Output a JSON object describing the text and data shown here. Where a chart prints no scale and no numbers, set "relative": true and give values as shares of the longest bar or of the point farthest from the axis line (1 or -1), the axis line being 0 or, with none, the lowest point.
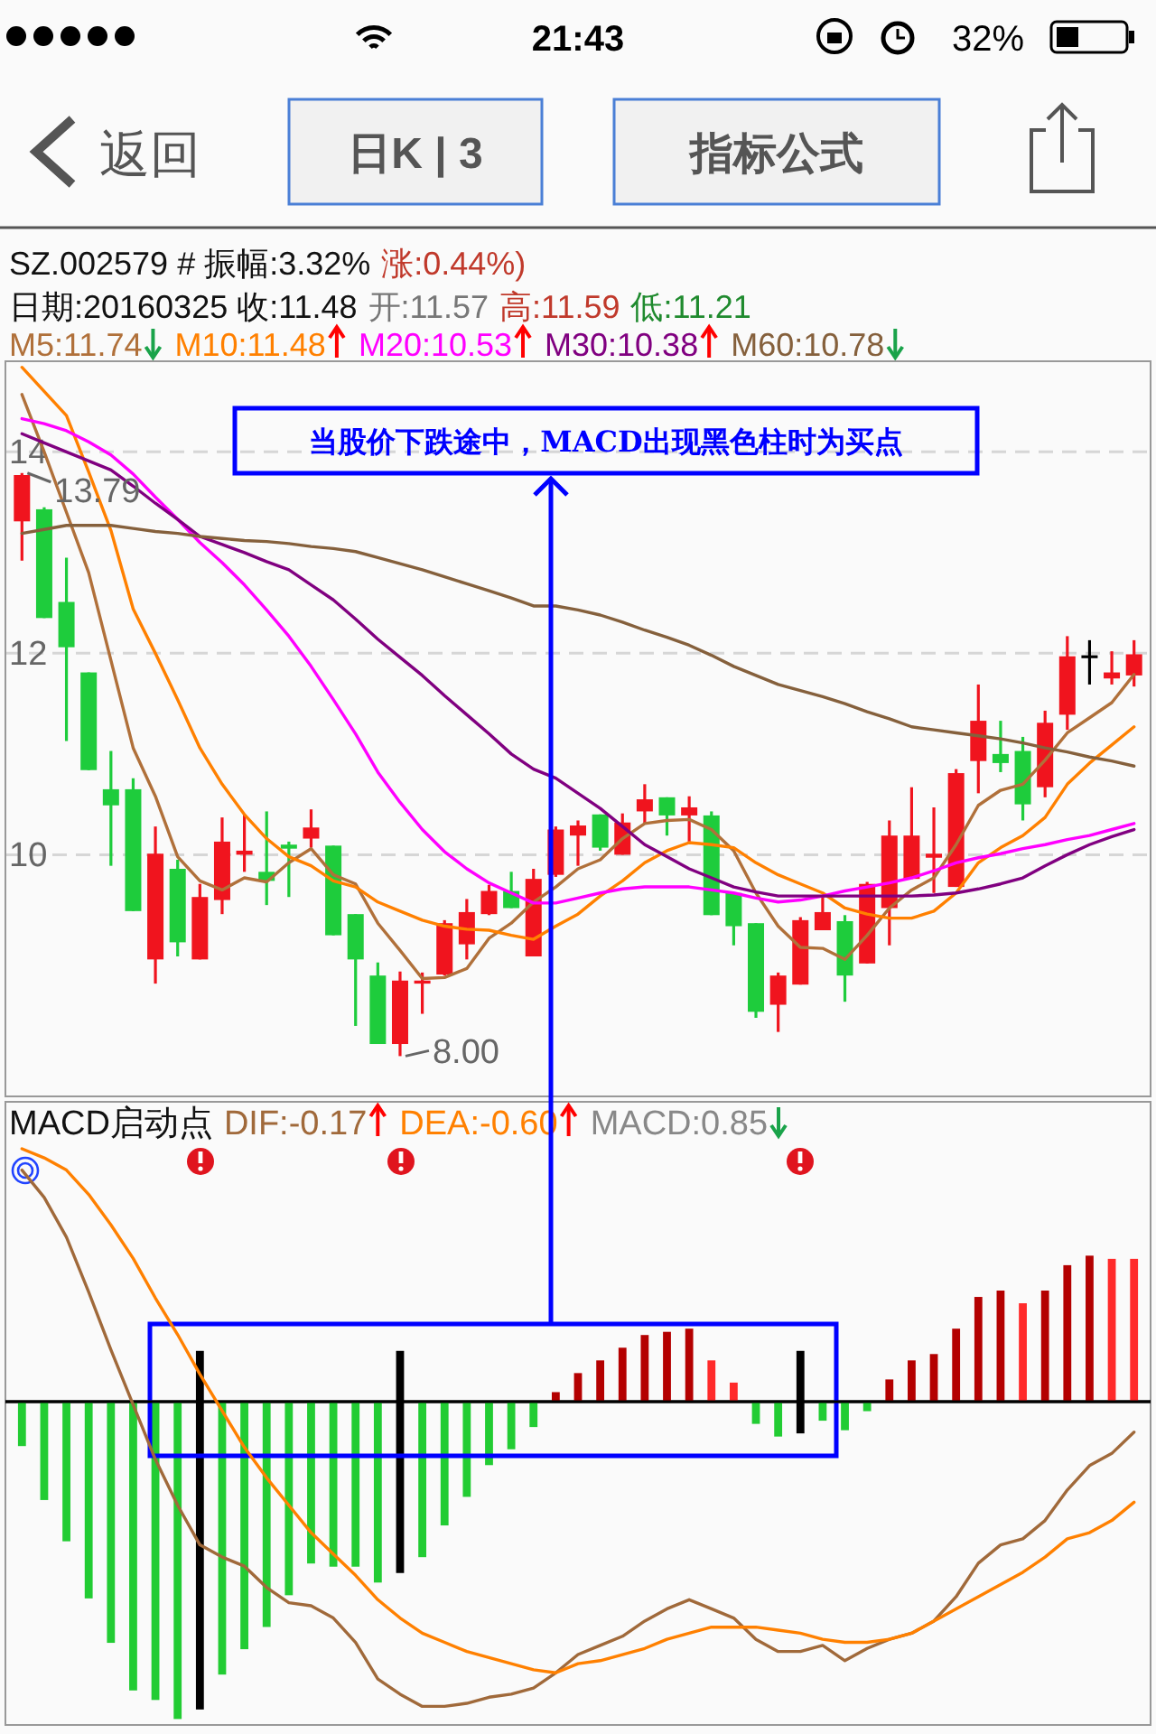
{
  "chart_data": [
    {
      "type": "candlestick",
      "title": "SZ.002579 # 振幅:3.32%",
      "annotations": [
        "涨:0.44%)",
        "日期:20160325 收:11.48",
        "开:11.57",
        "高:11.59",
        "低:11.21",
        "13.79",
        "8.00",
        "当股价下跌途中，MACD出现黑色柱时为买点",
        "21:43",
        "32%",
        "返回",
        "日K | 3",
        "指标公式"
      ],
      "categories": [
        null,
        null,
        null,
        null,
        null,
        null,
        null,
        null,
        null,
        null,
        null,
        null,
        null,
        null,
        null,
        null,
        null,
        null,
        null,
        null,
        null,
        null,
        null,
        null,
        null,
        null,
        null,
        null,
        null,
        null,
        null,
        null,
        null,
        null,
        null,
        null,
        null,
        null,
        null,
        null,
        null,
        null,
        null,
        null,
        null,
        null,
        null,
        null,
        null,
        null,
        null
      ],
      "ohlc": [
        [
          13.31,
          13.79,
          12.92,
          13.77
        ],
        [
          13.43,
          13.45,
          12.35,
          12.35
        ],
        [
          12.51,
          12.95,
          11.13,
          12.06
        ],
        [
          11.81,
          11.81,
          10.84,
          10.84
        ],
        [
          10.65,
          11.03,
          9.89,
          10.49
        ],
        [
          10.65,
          10.76,
          9.44,
          9.44
        ],
        [
          8.96,
          10.28,
          8.72,
          10.01
        ],
        [
          9.86,
          9.95,
          8.99,
          9.13
        ],
        [
          8.96,
          9.71,
          8.96,
          9.58
        ],
        [
          9.55,
          10.37,
          9.41,
          10.13
        ],
        [
          10.0,
          10.4,
          9.83,
          10.04
        ],
        [
          9.83,
          10.43,
          9.5,
          9.74
        ],
        [
          10.1,
          10.13,
          9.58,
          10.06
        ],
        [
          10.16,
          10.45,
          10.07,
          10.27
        ],
        [
          10.09,
          10.09,
          9.2,
          9.2
        ],
        [
          9.41,
          9.41,
          8.3,
          8.96
        ],
        [
          8.8,
          8.93,
          8.12,
          8.12
        ],
        [
          8.12,
          8.84,
          8.0,
          8.75
        ],
        [
          8.72,
          8.83,
          8.42,
          8.75
        ],
        [
          8.81,
          9.35,
          8.8,
          9.32
        ],
        [
          9.11,
          9.56,
          8.96,
          9.43
        ],
        [
          9.41,
          9.7,
          9.4,
          9.64
        ],
        [
          9.64,
          9.83,
          9.47,
          9.47
        ],
        [
          8.99,
          9.86,
          8.99,
          9.76
        ],
        [
          9.8,
          10.28,
          9.78,
          10.25
        ],
        [
          10.19,
          10.34,
          9.89,
          10.29
        ],
        [
          10.4,
          10.4,
          10.04,
          10.07
        ],
        [
          10.0,
          10.41,
          10.0,
          10.32
        ],
        [
          10.43,
          10.7,
          10.31,
          10.55
        ],
        [
          10.57,
          10.57,
          10.19,
          10.39
        ],
        [
          10.39,
          10.58,
          10.13,
          10.47
        ],
        [
          10.39,
          10.43,
          9.4,
          9.4
        ],
        [
          9.62,
          9.62,
          9.1,
          9.29
        ],
        [
          9.32,
          9.32,
          8.38,
          8.44
        ],
        [
          8.51,
          8.83,
          8.24,
          8.8
        ],
        [
          8.71,
          9.38,
          8.71,
          9.35
        ],
        [
          9.25,
          9.58,
          9.25,
          9.43
        ],
        [
          9.34,
          9.4,
          8.54,
          8.8
        ],
        [
          8.92,
          9.73,
          8.92,
          9.71
        ],
        [
          9.47,
          10.34,
          9.1,
          10.19
        ],
        [
          9.76,
          10.67,
          9.76,
          10.19
        ],
        [
          9.97,
          10.47,
          9.62,
          10.01
        ],
        [
          9.68,
          10.85,
          9.68,
          10.81
        ],
        [
          10.93,
          11.69,
          10.61,
          11.33
        ],
        [
          11.0,
          11.33,
          10.82,
          10.91
        ],
        [
          11.03,
          11.17,
          10.34,
          10.5
        ],
        [
          10.67,
          11.43,
          10.57,
          11.31
        ],
        [
          11.39,
          12.17,
          11.24,
          11.97
        ],
        [
          11.98,
          12.13,
          11.69,
          11.98
        ],
        [
          11.75,
          12.02,
          11.69,
          11.81
        ],
        [
          11.78,
          12.13,
          11.67,
          11.99
        ]
      ],
      "colors": [
        "#f0141e",
        "#1ecc3c",
        "#1ecc3c",
        "#1ecc3c",
        "#1ecc3c",
        "#1ecc3c",
        "#f0141e",
        "#1ecc3c",
        "#f0141e",
        "#f0141e",
        "#f0141e",
        "#1ecc3c",
        "#1ecc3c",
        "#f0141e",
        "#1ecc3c",
        "#1ecc3c",
        "#1ecc3c",
        "#f0141e",
        "#f0141e",
        "#f0141e",
        "#f0141e",
        "#f0141e",
        "#1ecc3c",
        "#f0141e",
        "#f0141e",
        "#f0141e",
        "#1ecc3c",
        "#f0141e",
        "#f0141e",
        "#1ecc3c",
        "#f0141e",
        "#1ecc3c",
        "#1ecc3c",
        "#1ecc3c",
        "#f0141e",
        "#f0141e",
        "#f0141e",
        "#1ecc3c",
        "#f0141e",
        "#f0141e",
        "#f0141e",
        "#f0141e",
        "#f0141e",
        "#f0141e",
        "#1ecc3c",
        "#1ecc3c",
        "#f0141e",
        "#f0141e",
        "#000000",
        "#f0141e",
        "#f0141e"
      ],
      "series": [
        {
          "type": "line",
          "name": "M5:11.74",
          "color": "#b0703a",
          "values": [
            14.57,
            14.0,
            13.4,
            12.8,
            11.93,
            11.06,
            10.58,
            9.98,
            9.74,
            9.65,
            9.77,
            9.73,
            9.92,
            10.06,
            9.8,
            9.71,
            9.32,
            9.05,
            8.77,
            8.78,
            8.87,
            9.17,
            9.32,
            9.53,
            9.68,
            9.86,
            9.95,
            10.16,
            10.31,
            10.34,
            10.35,
            10.25,
            10.04,
            9.62,
            9.29,
            9.08,
            9.07,
            8.96,
            9.2,
            9.47,
            9.65,
            9.77,
            10.1,
            10.49,
            10.64,
            10.7,
            10.94,
            11.21,
            11.36,
            11.51,
            11.79
          ]
        },
        {
          "type": "line",
          "name": "M10:11.48",
          "color": "#ff8000",
          "values": [
            14.84,
            14.6,
            14.36,
            13.8,
            13.22,
            12.44,
            12.0,
            11.54,
            11.06,
            10.7,
            10.4,
            10.16,
            9.98,
            9.89,
            9.74,
            9.68,
            9.53,
            9.44,
            9.35,
            9.29,
            9.26,
            9.25,
            9.2,
            9.16,
            9.29,
            9.41,
            9.59,
            9.74,
            9.92,
            10.04,
            10.12,
            10.1,
            10.07,
            9.92,
            9.8,
            9.71,
            9.62,
            9.47,
            9.41,
            9.37,
            9.37,
            9.44,
            9.62,
            9.92,
            10.07,
            10.19,
            10.37,
            10.7,
            10.91,
            11.09,
            11.27
          ]
        },
        {
          "type": "line",
          "name": "M20:10.53",
          "color": "#ff00ff",
          "values": [
            14.33,
            14.28,
            14.21,
            14.1,
            13.97,
            13.78,
            13.55,
            13.33,
            13.1,
            12.9,
            12.68,
            12.43,
            12.17,
            11.87,
            11.54,
            11.2,
            10.82,
            10.52,
            10.25,
            10.03,
            9.86,
            9.72,
            9.62,
            9.52,
            9.52,
            9.57,
            9.62,
            9.66,
            9.68,
            9.68,
            9.68,
            9.65,
            9.62,
            9.57,
            9.53,
            9.55,
            9.59,
            9.64,
            9.68,
            9.72,
            9.77,
            9.84,
            9.92,
            9.97,
            10.01,
            10.06,
            10.1,
            10.15,
            10.19,
            10.25,
            10.31
          ]
        },
        {
          "type": "line",
          "name": "M30:10.38",
          "color": "#800080",
          "values": [
            14.18,
            14.09,
            14.0,
            13.91,
            13.82,
            13.66,
            13.49,
            13.33,
            13.16,
            13.08,
            13.0,
            12.91,
            12.83,
            12.68,
            12.53,
            12.34,
            12.14,
            11.96,
            11.78,
            11.58,
            11.39,
            11.2,
            11.0,
            10.85,
            10.76,
            10.61,
            10.46,
            10.28,
            10.1,
            9.98,
            9.86,
            9.77,
            9.68,
            9.63,
            9.59,
            9.59,
            9.59,
            9.59,
            9.59,
            9.59,
            9.59,
            9.6,
            9.62,
            9.66,
            9.71,
            9.77,
            9.89,
            10.0,
            10.1,
            10.18,
            10.25
          ]
        },
        {
          "type": "line",
          "name": "M60:10.78",
          "color": "#85603c",
          "values": [
            13.19,
            13.23,
            13.27,
            13.27,
            13.27,
            13.24,
            13.21,
            13.19,
            13.16,
            13.14,
            13.12,
            13.11,
            13.09,
            13.06,
            13.04,
            13.01,
            12.95,
            12.89,
            12.83,
            12.76,
            12.69,
            12.62,
            12.55,
            12.47,
            12.47,
            12.43,
            12.38,
            12.31,
            12.23,
            12.16,
            12.08,
            11.98,
            11.87,
            11.78,
            11.69,
            11.63,
            11.57,
            11.5,
            11.42,
            11.35,
            11.27,
            11.24,
            11.21,
            11.18,
            11.15,
            11.11,
            11.06,
            11.02,
            10.97,
            10.93,
            10.88
          ]
        }
      ],
      "ylim": [
        7.6,
        14.9
      ],
      "yticks": [
        10,
        12,
        14
      ],
      "grid": "y",
      "tick_labels": "y",
      "legend": "top left"
    },
    {
      "type": "bar",
      "title": "MACD启动点",
      "relative": true,
      "tick_labels": false,
      "legend": "top",
      "stacked": true,
      "categories": [
        null,
        null,
        null,
        null,
        null,
        null,
        null,
        null,
        null,
        null,
        null,
        null,
        null,
        null,
        null,
        null,
        null,
        null,
        null,
        null,
        null,
        null,
        null,
        null,
        null,
        null,
        null,
        null,
        null,
        null,
        null,
        null,
        null,
        null,
        null,
        null,
        null,
        null,
        null,
        null,
        null,
        null,
        null,
        null,
        null,
        null,
        null,
        null,
        null,
        null,
        null
      ],
      "series": [
        {
          "name": "MACD:0.85",
          "values": [
            -0.14,
            -0.31,
            -0.44,
            -0.62,
            -0.76,
            -0.91,
            -0.94,
            -1.0,
            -0.97,
            -0.86,
            -0.78,
            -0.71,
            -0.61,
            -0.51,
            -0.52,
            -0.52,
            -0.57,
            -0.54,
            -0.49,
            -0.39,
            -0.3,
            -0.2,
            -0.15,
            -0.08,
            0.03,
            0.09,
            0.13,
            0.17,
            0.21,
            0.22,
            0.23,
            0.13,
            0.06,
            -0.07,
            -0.11,
            -0.1,
            -0.06,
            -0.09,
            -0.03,
            0.07,
            0.13,
            0.15,
            0.23,
            0.33,
            0.35,
            0.31,
            0.35,
            0.43,
            0.46,
            0.45,
            0.45
          ],
          "colors": [
            "#22cc33",
            "#22cc33",
            "#22cc33",
            "#22cc33",
            "#22cc33",
            "#22cc33",
            "#22cc33",
            "#22cc33",
            "#000000",
            "#22cc33",
            "#22cc33",
            "#22cc33",
            "#22cc33",
            "#22cc33",
            "#22cc33",
            "#22cc33",
            "#22cc33",
            "#000000",
            "#22cc33",
            "#22cc33",
            "#22cc33",
            "#22cc33",
            "#22cc33",
            "#22cc33",
            "#b40000",
            "#b40000",
            "#b40000",
            "#b40000",
            "#b40000",
            "#b40000",
            "#b40000",
            "#ff2a2a",
            "#ff2a2a",
            "#22cc33",
            "#22cc33",
            "#000000",
            "#22cc33",
            "#22cc33",
            "#22cc33",
            "#b40000",
            "#b40000",
            "#b40000",
            "#b40000",
            "#b40000",
            "#b40000",
            "#ff2a2a",
            "#b40000",
            "#b40000",
            "#b40000",
            "#ff2a2a",
            "#ff2a2a"
          ]
        },
        {
          "color": "#000000",
          "values": [
            0,
            0,
            0,
            0,
            0,
            0,
            0,
            0,
            0.16,
            0,
            0,
            0,
            0,
            0,
            0,
            0,
            0,
            0.16,
            0,
            0,
            0,
            0,
            0,
            0,
            0,
            0,
            0,
            0,
            0,
            0,
            0,
            0,
            0,
            0,
            0,
            0.16,
            0,
            0,
            0,
            0,
            0,
            0,
            0,
            0,
            0,
            0,
            0,
            0,
            0,
            0,
            0
          ]
        }
      ]
    },
    {
      "type": "line",
      "relative": true,
      "tick_labels": false,
      "legend": "top left",
      "categories": [
        null,
        null,
        null,
        null,
        null,
        null,
        null,
        null,
        null,
        null,
        null,
        null,
        null,
        null,
        null,
        null,
        null,
        null,
        null,
        null,
        null,
        null,
        null,
        null,
        null,
        null,
        null,
        null,
        null,
        null,
        null,
        null,
        null,
        null,
        null,
        null,
        null,
        null,
        null,
        null,
        null,
        null,
        null,
        null,
        null,
        null,
        null,
        null,
        null,
        null,
        null
      ],
      "series": [
        {
          "name": "DIF:-0.17",
          "color": "#a0693a",
          "values": [
            0.76,
            0.67,
            0.54,
            0.36,
            0.17,
            -0.01,
            -0.19,
            -0.34,
            -0.47,
            -0.51,
            -0.54,
            -0.61,
            -0.66,
            -0.67,
            -0.71,
            -0.79,
            -0.91,
            -0.96,
            -1.0,
            -1.0,
            -0.99,
            -0.97,
            -0.96,
            -0.94,
            -0.89,
            -0.83,
            -0.8,
            -0.77,
            -0.72,
            -0.68,
            -0.65,
            -0.68,
            -0.71,
            -0.78,
            -0.82,
            -0.82,
            -0.8,
            -0.85,
            -0.81,
            -0.78,
            -0.76,
            -0.72,
            -0.64,
            -0.53,
            -0.47,
            -0.45,
            -0.39,
            -0.29,
            -0.21,
            -0.17,
            -0.1
          ]
        },
        {
          "name": "DEA:-0.60",
          "color": "#ff8000",
          "values": [
            0.83,
            0.8,
            0.76,
            0.68,
            0.58,
            0.47,
            0.34,
            0.22,
            0.09,
            -0.03,
            -0.15,
            -0.25,
            -0.34,
            -0.43,
            -0.5,
            -0.57,
            -0.65,
            -0.71,
            -0.76,
            -0.79,
            -0.82,
            -0.84,
            -0.86,
            -0.88,
            -0.89,
            -0.86,
            -0.85,
            -0.83,
            -0.81,
            -0.78,
            -0.76,
            -0.74,
            -0.74,
            -0.74,
            -0.75,
            -0.76,
            -0.78,
            -0.79,
            -0.79,
            -0.78,
            -0.76,
            -0.72,
            -0.68,
            -0.64,
            -0.6,
            -0.56,
            -0.51,
            -0.45,
            -0.43,
            -0.39,
            -0.33
          ]
        }
      ]
    }
  ]
}
